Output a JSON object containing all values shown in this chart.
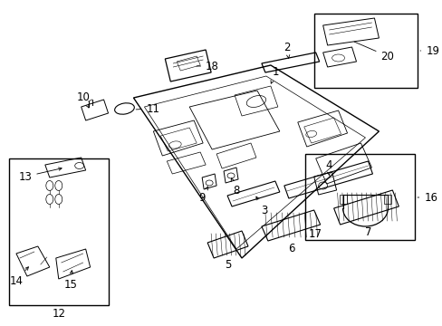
{
  "bg_color": "#ffffff",
  "line_color": "#000000",
  "font_size": 8.5,
  "fig_w": 4.89,
  "fig_h": 3.6,
  "dpi": 100
}
